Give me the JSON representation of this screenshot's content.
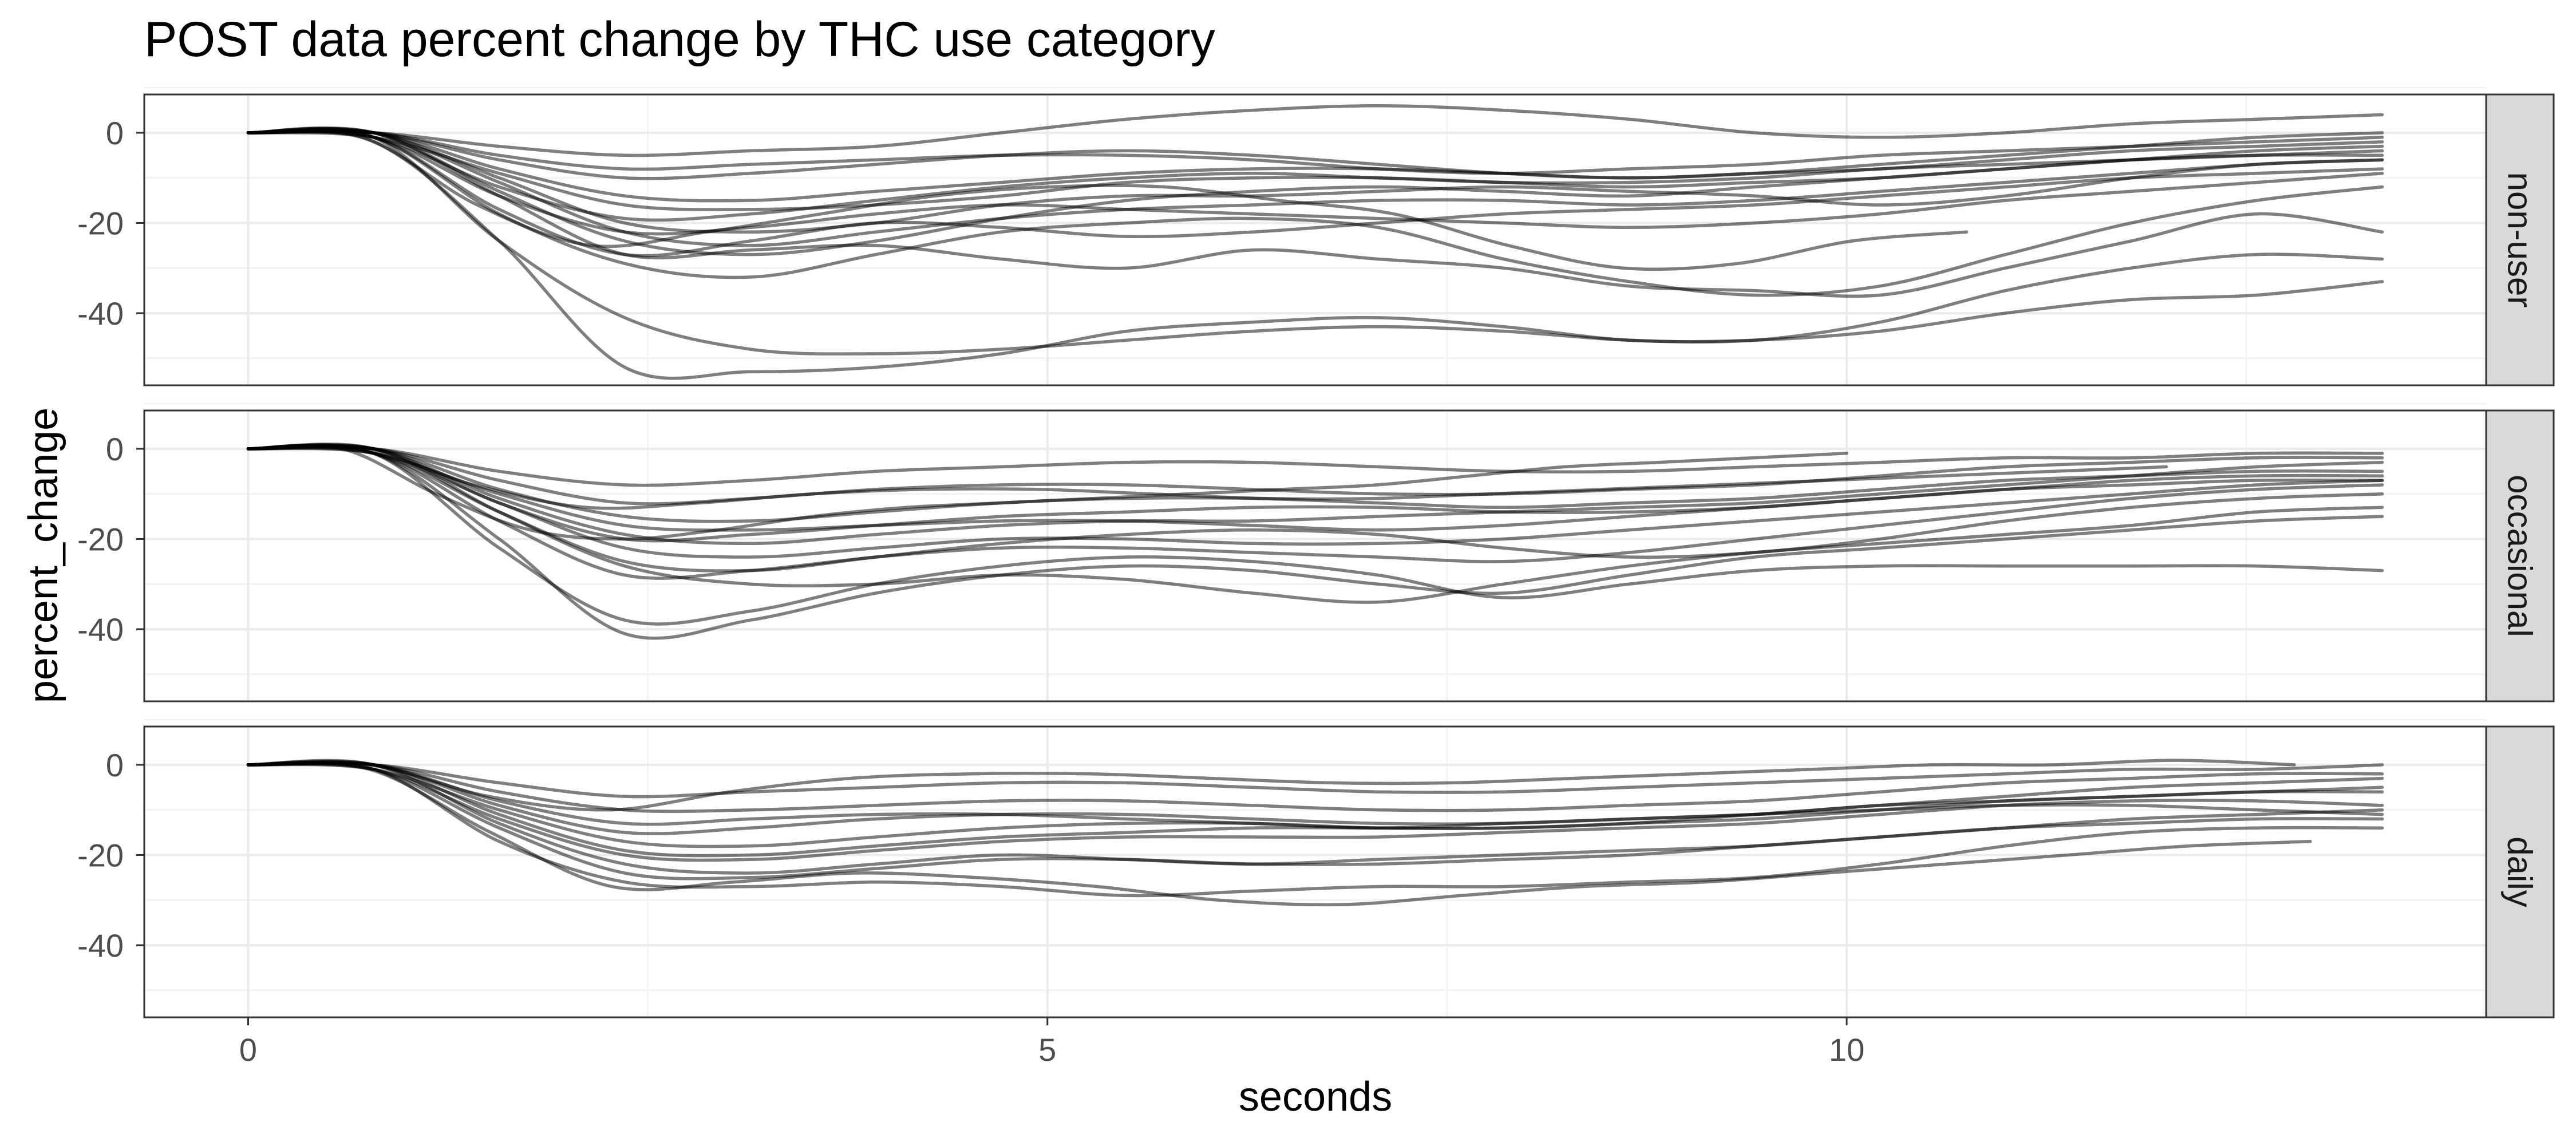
{
  "chart_data": {
    "type": "line",
    "title": "POST data percent change by THC use category",
    "xlabel": "seconds",
    "ylabel": "percent_change",
    "xlim": [
      -0.65,
      14.0
    ],
    "ylim": [
      -56,
      8.5
    ],
    "x_ticks": [
      0,
      5,
      10
    ],
    "x_tick_labels": [
      "0",
      "5",
      "10"
    ],
    "y_ticks": [
      0,
      -20,
      -40
    ],
    "y_tick_labels": [
      "0",
      "-20",
      "-40"
    ],
    "facet_layout": "vertical, strip labels on right",
    "grid": true,
    "line_color": "#000000",
    "line_alpha": 0.5,
    "panels": [
      {
        "label": "non-user",
        "x_end": 13.35,
        "series": [
          {
            "y": [
              0,
              0,
              -3,
              -5,
              -4,
              -3,
              0,
              3,
              5,
              6,
              5,
              3,
              0,
              -1,
              0,
              2,
              3,
              4
            ]
          },
          {
            "y": [
              0,
              -2,
              -24,
              -52,
              -53,
              -52,
              -49,
              -44,
              -42,
              -41,
              -43,
              -46,
              -46,
              -44,
              -40,
              -37,
              -36,
              -33
            ]
          },
          {
            "y": [
              0,
              -1,
              -24,
              -41,
              -48,
              -49,
              -48,
              -46,
              -44,
              -43,
              -44,
              -46,
              -46,
              -42,
              -35,
              -30,
              -27,
              -28
            ]
          },
          {
            "y": [
              0,
              0,
              -14,
              -27,
              -26,
              -25,
              -28,
              -30,
              -26,
              -28,
              -30,
              -34,
              -35,
              -36,
              -30,
              -24,
              -18,
              -22
            ],
            "x_end": 13.35
          },
          {
            "y": [
              0,
              -1,
              -18,
              -29,
              -32,
              -27,
              -22,
              -20,
              -19,
              -21,
              -28,
              -33,
              -36,
              -34,
              -27,
              -20,
              -15,
              -12
            ]
          },
          {
            "y": [
              0,
              -1,
              -16,
              -25,
              -22,
              -18,
              -14,
              -12,
              -12,
              -15,
              -18,
              -25,
              -30,
              -29,
              -24,
              -22
            ],
            "x_end": 10.75
          },
          {
            "y": [
              0,
              0,
              -10,
              -20,
              -22,
              -20,
              -16,
              -14,
              -14,
              -13,
              -12,
              -13,
              -14,
              -16,
              -14,
              -10,
              -7,
              -6
            ]
          },
          {
            "y": [
              0,
              -1,
              -9,
              -16,
              -17,
              -16,
              -14,
              -11,
              -10,
              -10,
              -11,
              -12,
              -11,
              -10,
              -8,
              -6,
              -4,
              -3
            ]
          },
          {
            "y": [
              0,
              0,
              -6,
              -10,
              -9,
              -7,
              -5,
              -4,
              -5,
              -7,
              -9,
              -10,
              -9,
              -8,
              -6,
              -4,
              -3,
              -2
            ]
          },
          {
            "y": [
              0,
              0,
              -13,
              -24,
              -27,
              -24,
              -19,
              -15,
              -13,
              -12,
              -13,
              -14,
              -12,
              -10,
              -8,
              -6,
              -5,
              -5
            ]
          },
          {
            "y": [
              0,
              -1,
              -17,
              -27,
              -24,
              -20,
              -21,
              -23,
              -22,
              -20,
              -18,
              -17,
              -16,
              -14,
              -12,
              -10,
              -9,
              -8
            ]
          },
          {
            "y": [
              0,
              0,
              -8,
              -14,
              -15,
              -13,
              -11,
              -9,
              -8,
              -8,
              -9,
              -10,
              -9,
              -7,
              -5,
              -3,
              -1,
              0
            ]
          },
          {
            "y": [
              0,
              -1,
              -14,
              -22,
              -21,
              -18,
              -16,
              -17,
              -18,
              -19,
              -20,
              -21,
              -20,
              -18,
              -15,
              -13,
              -11,
              -9
            ]
          },
          {
            "y": [
              0,
              0,
              -5,
              -8,
              -7,
              -6,
              -5,
              -5,
              -6,
              -8,
              -9,
              -8,
              -7,
              -5,
              -4,
              -3,
              -2,
              -1
            ]
          },
          {
            "y": [
              0,
              -1,
              -12,
              -19,
              -18,
              -15,
              -12,
              -10,
              -9,
              -10,
              -11,
              -11,
              -10,
              -8,
              -7,
              -6,
              -5,
              -4
            ]
          },
          {
            "y": [
              0,
              0,
              -11,
              -22,
              -25,
              -22,
              -19,
              -17,
              -16,
              -15,
              -15,
              -16,
              -15,
              -13,
              -11,
              -9,
              -7,
              -6
            ]
          }
        ]
      },
      {
        "label": "occasional",
        "x_end": 13.35,
        "series": [
          {
            "y": [
              0,
              -1,
              -22,
              -38,
              -36,
              -30,
              -26,
              -24,
              -25,
              -28,
              -33,
              -30,
              -27,
              -26,
              -26,
              -26,
              -26,
              -27
            ]
          },
          {
            "y": [
              0,
              -1,
              -20,
              -41,
              -38,
              -32,
              -28,
              -26,
              -27,
              -30,
              -32,
              -28,
              -24,
              -22,
              -20,
              -18,
              -16,
              -15
            ]
          },
          {
            "y": [
              0,
              0,
              -14,
              -26,
              -30,
              -30,
              -28,
              -29,
              -32,
              -34,
              -30,
              -26,
              -23,
              -21,
              -19,
              -17,
              -14,
              -13
            ]
          },
          {
            "y": [
              0,
              0,
              -10,
              -18,
              -20,
              -18,
              -15,
              -13,
              -12,
              -11,
              -10,
              -9,
              -8,
              -6,
              -4,
              -3,
              -2,
              -1
            ],
            "x_end": 10.0
          },
          {
            "y": [
              0,
              -1,
              -14,
              -25,
              -27,
              -24,
              -21,
              -19,
              -18,
              -19,
              -22,
              -24,
              -23,
              -20,
              -16,
              -13,
              -11,
              -10
            ]
          },
          {
            "y": [
              0,
              0,
              -7,
              -12,
              -11,
              -9,
              -8,
              -8,
              -9,
              -10,
              -10,
              -9,
              -8,
              -6,
              -4,
              -3,
              -2,
              -2
            ]
          },
          {
            "y": [
              0,
              0,
              -11,
              -19,
              -21,
              -19,
              -17,
              -16,
              -16,
              -15,
              -14,
              -13,
              -12,
              -10,
              -8,
              -6,
              -4,
              -3
            ]
          },
          {
            "y": [
              0,
              -1,
              -16,
              -28,
              -27,
              -24,
              -22,
              -22,
              -23,
              -24,
              -25,
              -23,
              -20,
              -17,
              -14,
              -11,
              -9,
              -8
            ]
          },
          {
            "y": [
              0,
              0,
              -5,
              -8,
              -7,
              -5,
              -4,
              -3,
              -3,
              -4,
              -5,
              -5,
              -4,
              -3,
              -2,
              -2,
              -1,
              -1
            ]
          },
          {
            "y": [
              0,
              0,
              -9,
              -15,
              -16,
              -14,
              -12,
              -11,
              -11,
              -12,
              -13,
              -12,
              -11,
              -9,
              -7,
              -6,
              -5,
              -5
            ]
          },
          {
            "y": [
              0,
              -1,
              -12,
              -22,
              -24,
              -22,
              -20,
              -20,
              -21,
              -21,
              -20,
              -18,
              -16,
              -14,
              -12,
              -10,
              -8,
              -7
            ]
          },
          {
            "y": [
              0,
              0,
              -8,
              -13,
              -12,
              -10,
              -9,
              -9,
              -10,
              -11,
              -11,
              -10,
              -9,
              -8,
              -7,
              -6,
              -5,
              -4
            ],
            "x_end": 12.0
          },
          {
            "y": [
              0,
              0,
              -12,
              -20,
              -19,
              -17,
              -15,
              -14,
              -13,
              -13,
              -14,
              -14,
              -13,
              -11,
              -9,
              -7,
              -6,
              -6
            ]
          },
          {
            "y": [
              0,
              -1,
              -10,
              -17,
              -18,
              -17,
              -16,
              -16,
              -17,
              -18,
              -17,
              -15,
              -13,
              -11,
              -9,
              -8,
              -7,
              -7
            ]
          }
        ]
      },
      {
        "label": "daily",
        "x_end": 13.35,
        "series": [
          {
            "y": [
              0,
              -1,
              -15,
              -27,
              -26,
              -24,
              -25,
              -27,
              -30,
              -31,
              -29,
              -27,
              -26,
              -24,
              -22,
              -20,
              -18,
              -17
            ],
            "x_end": 12.9
          },
          {
            "y": [
              0,
              -1,
              -17,
              -26,
              -27,
              -26,
              -27,
              -29,
              -28,
              -27,
              -27,
              -26,
              -25,
              -22,
              -18,
              -15,
              -14,
              -14
            ]
          },
          {
            "y": [
              0,
              0,
              -13,
              -22,
              -24,
              -22,
              -20,
              -21,
              -22,
              -21,
              -20,
              -19,
              -18,
              -16,
              -14,
              -12,
              -11,
              -10
            ]
          },
          {
            "y": [
              0,
              0,
              -7,
              -10,
              -6,
              -3,
              -2,
              -2,
              -3,
              -4,
              -4,
              -3,
              -2,
              -1,
              0,
              0,
              1,
              0
            ],
            "x_end": 12.8
          },
          {
            "y": [
              0,
              -1,
              -10,
              -17,
              -18,
              -16,
              -14,
              -13,
              -13,
              -14,
              -14,
              -13,
              -11,
              -9,
              -7,
              -5,
              -4,
              -3
            ]
          },
          {
            "y": [
              0,
              0,
              -6,
              -10,
              -10,
              -9,
              -8,
              -8,
              -9,
              -10,
              -10,
              -9,
              -8,
              -6,
              -4,
              -3,
              -2,
              -2
            ]
          },
          {
            "y": [
              0,
              -1,
              -12,
              -20,
              -21,
              -19,
              -17,
              -16,
              -16,
              -16,
              -15,
              -14,
              -13,
              -11,
              -9,
              -8,
              -8,
              -9
            ]
          },
          {
            "y": [
              0,
              0,
              -4,
              -7,
              -6,
              -5,
              -4,
              -4,
              -5,
              -6,
              -6,
              -5,
              -4,
              -3,
              -2,
              -1,
              -1,
              0
            ]
          },
          {
            "y": [
              0,
              0,
              -9,
              -15,
              -14,
              -12,
              -11,
              -11,
              -12,
              -13,
              -13,
              -12,
              -11,
              -9,
              -8,
              -7,
              -6,
              -6
            ]
          },
          {
            "y": [
              0,
              -1,
              -14,
              -24,
              -25,
              -23,
              -21,
              -21,
              -22,
              -22,
              -21,
              -20,
              -18,
              -16,
              -14,
              -13,
              -12,
              -12
            ]
          },
          {
            "y": [
              0,
              0,
              -11,
              -19,
              -20,
              -18,
              -16,
              -15,
              -14,
              -14,
              -14,
              -13,
              -12,
              -10,
              -8,
              -7,
              -6,
              -5
            ]
          },
          {
            "y": [
              0,
              0,
              -8,
              -13,
              -12,
              -11,
              -11,
              -12,
              -13,
              -14,
              -13,
              -12,
              -11,
              -10,
              -9,
              -9,
              -10,
              -11
            ]
          }
        ]
      }
    ]
  }
}
